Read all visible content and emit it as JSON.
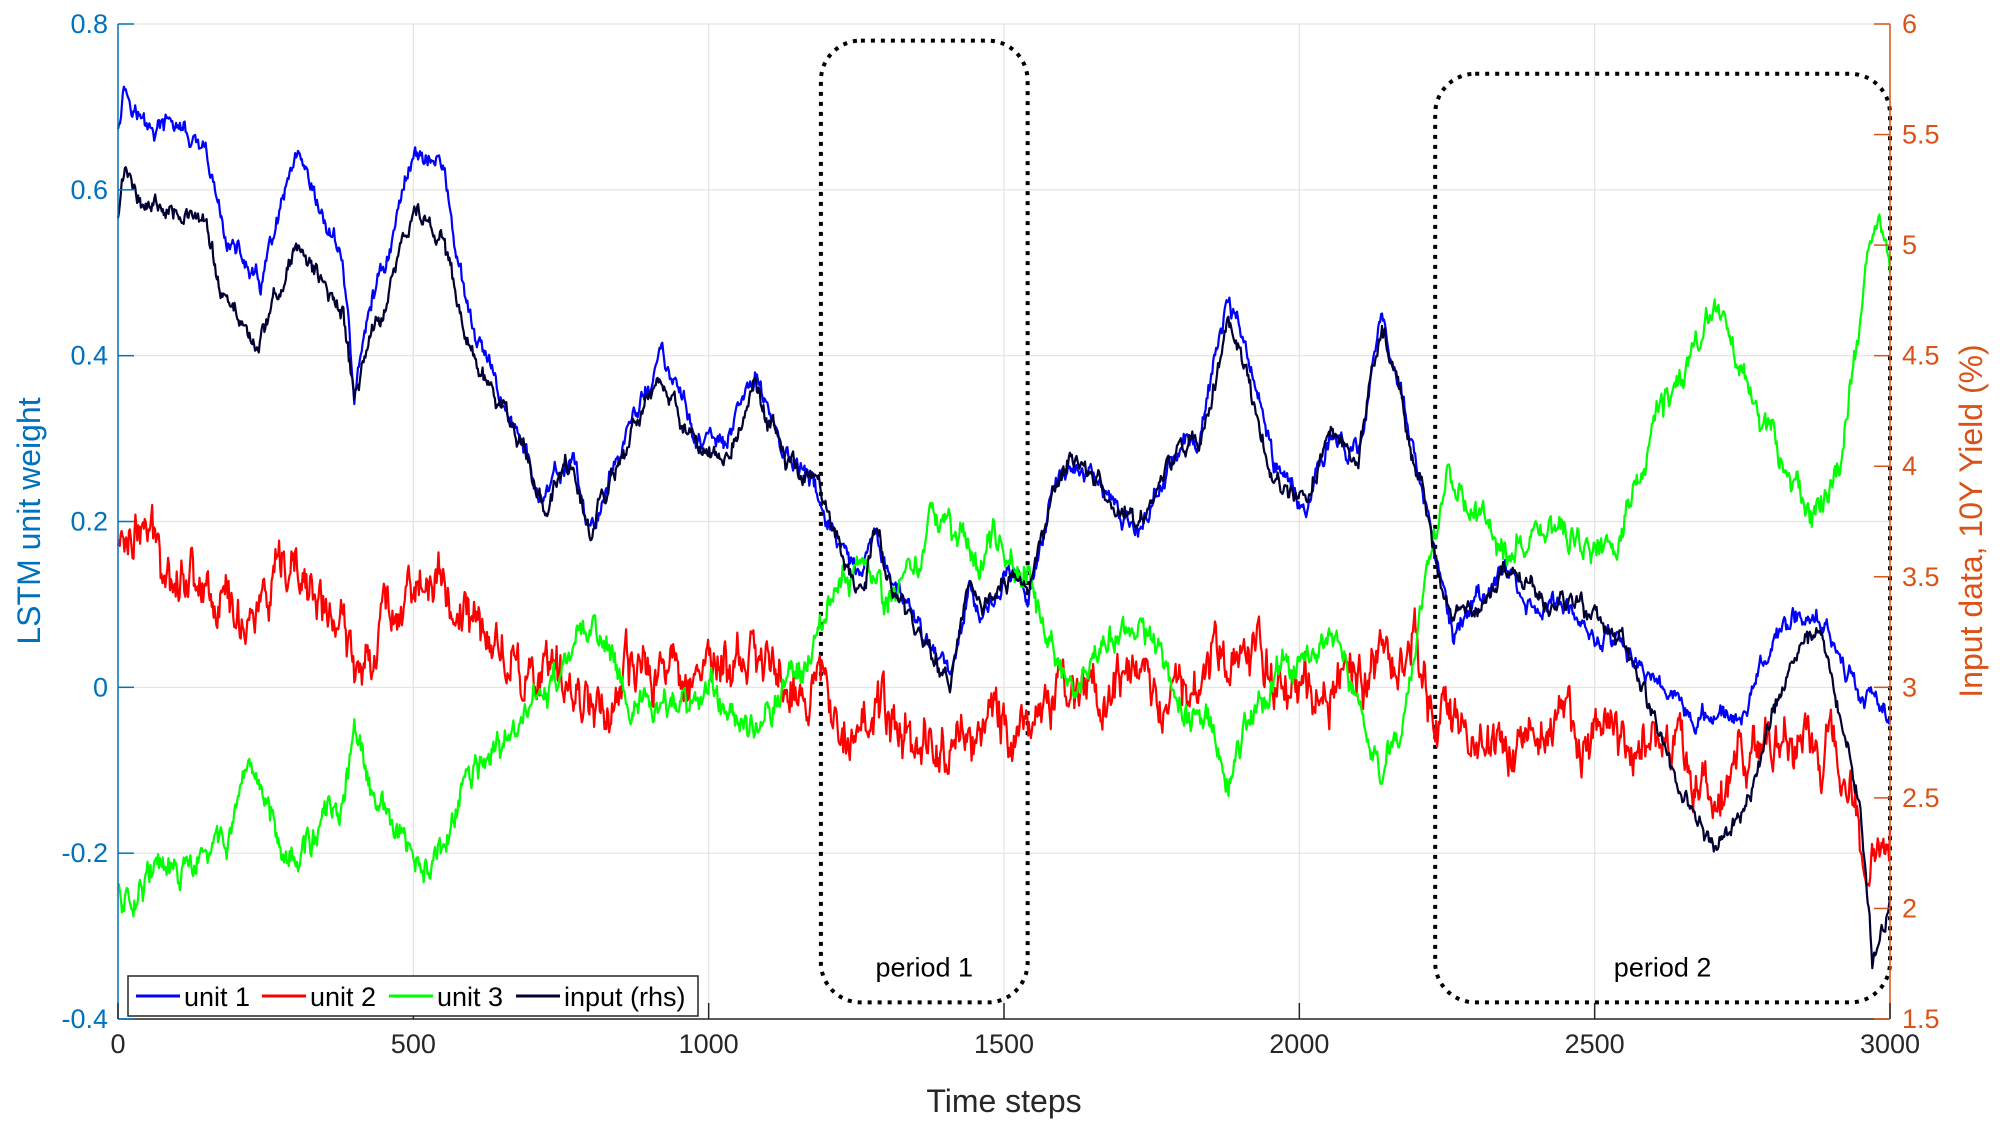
{
  "chart_data": {
    "type": "line",
    "title": "",
    "xlabel": "Time steps",
    "ylabel_left": "LSTM unit weight",
    "ylabel_right": "Input data, 10Y Yield (%)",
    "xlim": [
      0,
      3000
    ],
    "ylim_left": [
      -0.4,
      0.8
    ],
    "ylim_right": [
      1.5,
      6
    ],
    "x_ticks": [
      "0",
      "500",
      "1000",
      "1500",
      "2000",
      "2500",
      "3000"
    ],
    "y_ticks_left": [
      "-0.4",
      "-0.2",
      "0",
      "0.2",
      "0.4",
      "0.6",
      "0.8"
    ],
    "y_ticks_right": [
      "1.5",
      "2",
      "2.5",
      "3",
      "3.5",
      "4",
      "4.5",
      "5",
      "5.5",
      "6"
    ],
    "grid": true,
    "legend_position": "bottom-left",
    "colors": {
      "left_axis": "#0072BD",
      "right_axis": "#D95319",
      "unit1": "#0000FF",
      "unit2": "#FF0000",
      "unit3": "#00FF00",
      "input": "#000033"
    },
    "annotations": [
      {
        "label": "period 1",
        "x_range": [
          1190,
          1540
        ],
        "y_range": [
          -0.38,
          0.78
        ]
      },
      {
        "label": "period 2",
        "x_range": [
          2230,
          3000
        ],
        "y_range": [
          -0.38,
          0.74
        ]
      }
    ],
    "series": [
      {
        "name": "unit 1",
        "axis": "left",
        "color": "#0000FF",
        "noise": 0.012,
        "points": [
          [
            0,
            0.68
          ],
          [
            10,
            0.73
          ],
          [
            50,
            0.67
          ],
          [
            100,
            0.68
          ],
          [
            150,
            0.63
          ],
          [
            180,
            0.55
          ],
          [
            240,
            0.48
          ],
          [
            300,
            0.63
          ],
          [
            340,
            0.57
          ],
          [
            380,
            0.52
          ],
          [
            400,
            0.35
          ],
          [
            430,
            0.47
          ],
          [
            460,
            0.53
          ],
          [
            500,
            0.65
          ],
          [
            550,
            0.63
          ],
          [
            590,
            0.45
          ],
          [
            630,
            0.38
          ],
          [
            680,
            0.3
          ],
          [
            720,
            0.22
          ],
          [
            770,
            0.28
          ],
          [
            800,
            0.18
          ],
          [
            830,
            0.25
          ],
          [
            870,
            0.32
          ],
          [
            920,
            0.4
          ],
          [
            980,
            0.3
          ],
          [
            1030,
            0.29
          ],
          [
            1080,
            0.38
          ],
          [
            1130,
            0.28
          ],
          [
            1180,
            0.24
          ],
          [
            1230,
            0.15
          ],
          [
            1260,
            0.12
          ],
          [
            1280,
            0.19
          ],
          [
            1310,
            0.13
          ],
          [
            1350,
            0.07
          ],
          [
            1380,
            0.05
          ],
          [
            1410,
            0.02
          ],
          [
            1440,
            0.12
          ],
          [
            1470,
            0.09
          ],
          [
            1500,
            0.13
          ],
          [
            1540,
            0.12
          ],
          [
            1580,
            0.22
          ],
          [
            1610,
            0.28
          ],
          [
            1650,
            0.25
          ],
          [
            1690,
            0.21
          ],
          [
            1730,
            0.19
          ],
          [
            1780,
            0.27
          ],
          [
            1830,
            0.3
          ],
          [
            1880,
            0.47
          ],
          [
            1920,
            0.38
          ],
          [
            1960,
            0.27
          ],
          [
            2010,
            0.22
          ],
          [
            2050,
            0.3
          ],
          [
            2100,
            0.28
          ],
          [
            2140,
            0.46
          ],
          [
            2180,
            0.33
          ],
          [
            2220,
            0.19
          ],
          [
            2230,
            0.15
          ],
          [
            2260,
            0.06
          ],
          [
            2300,
            0.1
          ],
          [
            2350,
            0.14
          ],
          [
            2400,
            0.09
          ],
          [
            2450,
            0.1
          ],
          [
            2500,
            0.06
          ],
          [
            2550,
            0.05
          ],
          [
            2600,
            0.01
          ],
          [
            2650,
            -0.02
          ],
          [
            2700,
            -0.04
          ],
          [
            2750,
            -0.03
          ],
          [
            2800,
            0.05
          ],
          [
            2850,
            0.09
          ],
          [
            2880,
            0.09
          ],
          [
            2920,
            0.04
          ],
          [
            2950,
            -0.01
          ],
          [
            3000,
            -0.04
          ]
        ]
      },
      {
        "name": "unit 2",
        "axis": "left",
        "color": "#FF0000",
        "noise": 0.03,
        "points": [
          [
            0,
            0.17
          ],
          [
            20,
            0.2
          ],
          [
            80,
            0.16
          ],
          [
            130,
            0.14
          ],
          [
            200,
            0.09
          ],
          [
            260,
            0.1
          ],
          [
            300,
            0.13
          ],
          [
            360,
            0.09
          ],
          [
            400,
            0.02
          ],
          [
            450,
            0.09
          ],
          [
            500,
            0.13
          ],
          [
            560,
            0.11
          ],
          [
            620,
            0.06
          ],
          [
            680,
            0.03
          ],
          [
            730,
            0.0
          ],
          [
            790,
            0.0
          ],
          [
            830,
            -0.02
          ],
          [
            900,
            0.02
          ],
          [
            980,
            0.03
          ],
          [
            1050,
            0.02
          ],
          [
            1100,
            0.03
          ],
          [
            1150,
            0.01
          ],
          [
            1250,
            -0.03
          ],
          [
            1320,
            -0.05
          ],
          [
            1400,
            -0.07
          ],
          [
            1450,
            -0.05
          ],
          [
            1520,
            -0.04
          ],
          [
            1600,
            0.0
          ],
          [
            1700,
            -0.01
          ],
          [
            1800,
            0.01
          ],
          [
            1900,
            0.05
          ],
          [
            2000,
            0.01
          ],
          [
            2100,
            0.01
          ],
          [
            2200,
            0.05
          ],
          [
            2230,
            -0.05
          ],
          [
            2300,
            -0.06
          ],
          [
            2400,
            -0.05
          ],
          [
            2500,
            -0.07
          ],
          [
            2600,
            -0.07
          ],
          [
            2700,
            -0.14
          ],
          [
            2760,
            -0.09
          ],
          [
            2850,
            -0.07
          ],
          [
            2900,
            -0.07
          ],
          [
            2960,
            -0.18
          ],
          [
            3000,
            -0.17
          ]
        ]
      },
      {
        "name": "unit 3",
        "axis": "left",
        "color": "#00FF00",
        "noise": 0.018,
        "points": [
          [
            0,
            -0.24
          ],
          [
            10,
            -0.26
          ],
          [
            50,
            -0.22
          ],
          [
            100,
            -0.23
          ],
          [
            150,
            -0.21
          ],
          [
            200,
            -0.16
          ],
          [
            240,
            -0.12
          ],
          [
            300,
            -0.21
          ],
          [
            340,
            -0.17
          ],
          [
            380,
            -0.15
          ],
          [
            400,
            -0.05
          ],
          [
            430,
            -0.14
          ],
          [
            480,
            -0.18
          ],
          [
            500,
            -0.22
          ],
          [
            540,
            -0.22
          ],
          [
            600,
            -0.1
          ],
          [
            650,
            -0.08
          ],
          [
            700,
            -0.02
          ],
          [
            760,
            0.02
          ],
          [
            800,
            0.08
          ],
          [
            830,
            0.05
          ],
          [
            860,
            0.0
          ],
          [
            920,
            -0.04
          ],
          [
            980,
            0.0
          ],
          [
            1030,
            -0.02
          ],
          [
            1080,
            -0.04
          ],
          [
            1130,
            0.0
          ],
          [
            1180,
            0.06
          ],
          [
            1230,
            0.14
          ],
          [
            1270,
            0.16
          ],
          [
            1300,
            0.1
          ],
          [
            1350,
            0.15
          ],
          [
            1400,
            0.22
          ],
          [
            1450,
            0.15
          ],
          [
            1480,
            0.17
          ],
          [
            1510,
            0.16
          ],
          [
            1540,
            0.14
          ],
          [
            1580,
            0.05
          ],
          [
            1620,
            -0.01
          ],
          [
            1660,
            0.04
          ],
          [
            1700,
            0.07
          ],
          [
            1750,
            0.06
          ],
          [
            1800,
            -0.02
          ],
          [
            1850,
            -0.05
          ],
          [
            1880,
            -0.1
          ],
          [
            1920,
            -0.03
          ],
          [
            1960,
            0.02
          ],
          [
            2010,
            0.05
          ],
          [
            2060,
            0.06
          ],
          [
            2100,
            -0.02
          ],
          [
            2140,
            -0.1
          ],
          [
            2180,
            -0.02
          ],
          [
            2220,
            0.14
          ],
          [
            2250,
            0.25
          ],
          [
            2300,
            0.2
          ],
          [
            2350,
            0.16
          ],
          [
            2400,
            0.18
          ],
          [
            2450,
            0.19
          ],
          [
            2500,
            0.17
          ],
          [
            2560,
            0.21
          ],
          [
            2600,
            0.31
          ],
          [
            2650,
            0.38
          ],
          [
            2700,
            0.47
          ],
          [
            2740,
            0.4
          ],
          [
            2800,
            0.3
          ],
          [
            2850,
            0.21
          ],
          [
            2880,
            0.22
          ],
          [
            2920,
            0.28
          ],
          [
            2960,
            0.51
          ],
          [
            2990,
            0.56
          ],
          [
            3000,
            0.5
          ]
        ]
      },
      {
        "name": "input (rhs)",
        "axis": "right",
        "color": "#000033",
        "noise": 0.045,
        "points": [
          [
            0,
            5.12
          ],
          [
            10,
            5.33
          ],
          [
            50,
            5.18
          ],
          [
            100,
            5.2
          ],
          [
            150,
            5.05
          ],
          [
            180,
            4.75
          ],
          [
            240,
            4.55
          ],
          [
            300,
            5.0
          ],
          [
            340,
            4.85
          ],
          [
            380,
            4.7
          ],
          [
            400,
            4.3
          ],
          [
            430,
            4.6
          ],
          [
            460,
            4.8
          ],
          [
            500,
            5.15
          ],
          [
            550,
            5.05
          ],
          [
            590,
            4.55
          ],
          [
            630,
            4.35
          ],
          [
            680,
            4.1
          ],
          [
            720,
            3.85
          ],
          [
            770,
            4.02
          ],
          [
            800,
            3.68
          ],
          [
            830,
            3.88
          ],
          [
            870,
            4.15
          ],
          [
            920,
            4.35
          ],
          [
            980,
            4.1
          ],
          [
            1030,
            4.05
          ],
          [
            1080,
            4.35
          ],
          [
            1130,
            4.02
          ],
          [
            1180,
            3.9
          ],
          [
            1230,
            3.55
          ],
          [
            1260,
            3.42
          ],
          [
            1280,
            3.68
          ],
          [
            1310,
            3.45
          ],
          [
            1350,
            3.25
          ],
          [
            1380,
            3.15
          ],
          [
            1410,
            3.05
          ],
          [
            1440,
            3.45
          ],
          [
            1470,
            3.35
          ],
          [
            1500,
            3.5
          ],
          [
            1540,
            3.45
          ],
          [
            1580,
            3.82
          ],
          [
            1610,
            4.05
          ],
          [
            1650,
            3.95
          ],
          [
            1690,
            3.82
          ],
          [
            1730,
            3.72
          ],
          [
            1780,
            4.0
          ],
          [
            1830,
            4.12
          ],
          [
            1880,
            4.65
          ],
          [
            1920,
            4.3
          ],
          [
            1960,
            3.95
          ],
          [
            2010,
            3.82
          ],
          [
            2050,
            4.12
          ],
          [
            2100,
            4.05
          ],
          [
            2140,
            4.65
          ],
          [
            2180,
            4.2
          ],
          [
            2220,
            3.75
          ],
          [
            2230,
            3.62
          ],
          [
            2260,
            3.3
          ],
          [
            2300,
            3.35
          ],
          [
            2350,
            3.55
          ],
          [
            2400,
            3.42
          ],
          [
            2450,
            3.35
          ],
          [
            2500,
            3.3
          ],
          [
            2550,
            3.2
          ],
          [
            2600,
            2.85
          ],
          [
            2650,
            2.55
          ],
          [
            2700,
            2.25
          ],
          [
            2750,
            2.45
          ],
          [
            2800,
            2.9
          ],
          [
            2850,
            3.2
          ],
          [
            2880,
            3.25
          ],
          [
            2920,
            2.8
          ],
          [
            2950,
            2.45
          ],
          [
            2970,
            1.75
          ],
          [
            3000,
            2.05
          ]
        ]
      }
    ]
  }
}
